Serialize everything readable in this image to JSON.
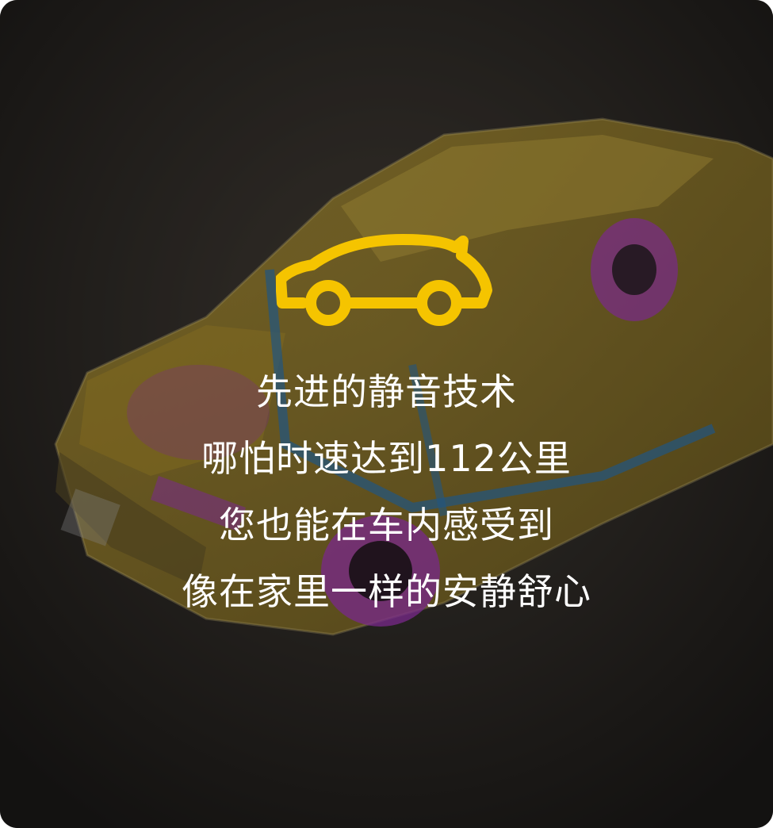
{
  "caption": {
    "line1": "先进的静音技术",
    "line2": "哪怕时速达到112公里",
    "line3": "您也能在车内感受到",
    "line4": "像在家里一样的安静舒心"
  },
  "colors": {
    "icon_yellow": "#f5c400",
    "body_yellow": "#c9a326",
    "acoustic_purple": "#b63ad1",
    "frame_blue": "#2f7fc0",
    "text": "#ffffff"
  },
  "icons": {
    "car": "car-icon",
    "background": "car-cutaway-illustration"
  }
}
